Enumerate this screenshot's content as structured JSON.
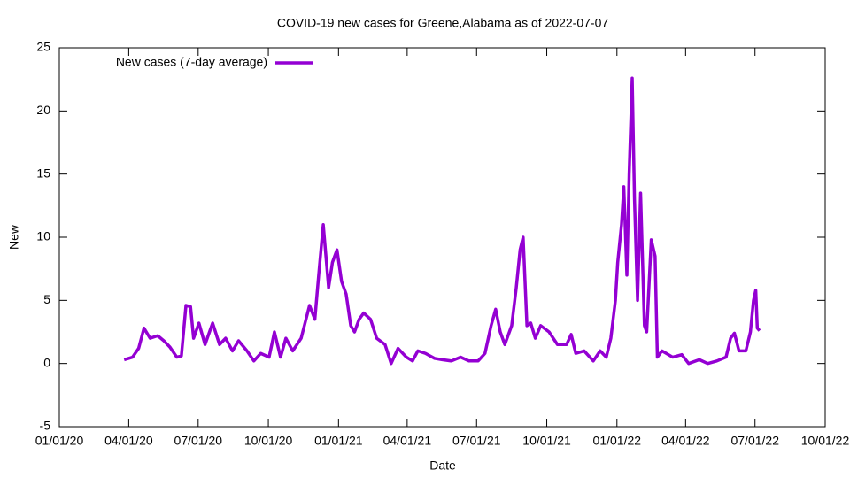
{
  "chart_data": {
    "type": "line",
    "title": "COVID-19 new cases for Greene,Alabama as of 2022-07-07",
    "x_label": "Date",
    "y_label": "New",
    "legend": "top left",
    "grid": false,
    "x": [
      "2020-03-26",
      "2020-04-06",
      "2020-04-14",
      "2020-04-21",
      "2020-04-29",
      "2020-05-09",
      "2020-05-17",
      "2020-05-25",
      "2020-06-03",
      "2020-06-09",
      "2020-06-15",
      "2020-06-21",
      "2020-06-25",
      "2020-07-02",
      "2020-07-10",
      "2020-07-20",
      "2020-07-29",
      "2020-08-06",
      "2020-08-15",
      "2020-08-23",
      "2020-09-03",
      "2020-09-12",
      "2020-09-21",
      "2020-10-02",
      "2020-10-09",
      "2020-10-17",
      "2020-10-24",
      "2020-11-02",
      "2020-11-13",
      "2020-11-24",
      "2020-12-01",
      "2020-12-06",
      "2020-12-12",
      "2020-12-19",
      "2020-12-24",
      "2020-12-30",
      "2021-01-05",
      "2021-01-11",
      "2021-01-17",
      "2021-01-22",
      "2021-01-28",
      "2021-02-03",
      "2021-02-12",
      "2021-02-20",
      "2021-03-03",
      "2021-03-11",
      "2021-03-20",
      "2021-03-31",
      "2021-04-08",
      "2021-04-15",
      "2021-04-25",
      "2021-05-07",
      "2021-05-17",
      "2021-05-29",
      "2021-06-10",
      "2021-06-21",
      "2021-07-03",
      "2021-07-12",
      "2021-07-20",
      "2021-07-26",
      "2021-08-01",
      "2021-08-07",
      "2021-08-16",
      "2021-08-22",
      "2021-08-27",
      "2021-08-31",
      "2021-09-05",
      "2021-09-10",
      "2021-09-16",
      "2021-09-23",
      "2021-10-04",
      "2021-10-15",
      "2021-10-27",
      "2021-11-02",
      "2021-11-08",
      "2021-11-19",
      "2021-12-01",
      "2021-12-10",
      "2021-12-18",
      "2021-12-24",
      "2021-12-30",
      "2022-01-02",
      "2022-01-07",
      "2022-01-10",
      "2022-01-14",
      "2022-01-17",
      "2022-01-21",
      "2022-01-24",
      "2022-01-28",
      "2022-02-01",
      "2022-02-06",
      "2022-02-09",
      "2022-02-15",
      "2022-02-20",
      "2022-02-23",
      "2022-03-01",
      "2022-03-15",
      "2022-03-27",
      "2022-04-05",
      "2022-04-19",
      "2022-04-30",
      "2022-05-12",
      "2022-05-24",
      "2022-05-30",
      "2022-06-04",
      "2022-06-10",
      "2022-06-19",
      "2022-06-25",
      "2022-06-29",
      "2022-07-02",
      "2022-07-04",
      "2022-07-07"
    ],
    "series": [
      {
        "name": "New cases (7-day average)",
        "color": "#9400d3",
        "values": [
          0.3,
          0.5,
          1.2,
          2.8,
          2.0,
          2.2,
          1.8,
          1.3,
          0.5,
          0.6,
          4.6,
          4.5,
          2.0,
          3.2,
          1.5,
          3.2,
          1.5,
          2.0,
          1.0,
          1.8,
          1.0,
          0.2,
          0.8,
          0.5,
          2.5,
          0.5,
          2.0,
          1.0,
          2.0,
          4.6,
          3.5,
          7.0,
          11.0,
          6.0,
          8.0,
          9.0,
          6.5,
          5.5,
          3.0,
          2.5,
          3.5,
          4.0,
          3.5,
          2.0,
          1.5,
          0.0,
          1.2,
          0.5,
          0.2,
          1.0,
          0.8,
          0.4,
          0.3,
          0.2,
          0.5,
          0.2,
          0.2,
          0.8,
          3.0,
          4.3,
          2.5,
          1.5,
          3.0,
          6.0,
          9.0,
          10.0,
          3.0,
          3.2,
          2.0,
          3.0,
          2.5,
          1.5,
          1.5,
          2.3,
          0.8,
          1.0,
          0.2,
          1.0,
          0.5,
          2.0,
          5.0,
          8.0,
          11.0,
          14.0,
          7.0,
          15.0,
          22.6,
          13.0,
          5.0,
          13.5,
          3.0,
          2.5,
          9.8,
          8.5,
          0.5,
          1.0,
          0.5,
          0.7,
          0.0,
          0.3,
          0.0,
          0.2,
          0.5,
          2.0,
          2.4,
          1.0,
          1.0,
          2.5,
          5.0,
          5.8,
          2.8,
          2.6
        ]
      }
    ],
    "xlim": [
      "2020-01-01",
      "2022-10-01"
    ],
    "xticks": [
      {
        "value": "2020-01-01",
        "label": "01/01/20"
      },
      {
        "value": "2020-04-01",
        "label": "04/01/20"
      },
      {
        "value": "2020-07-01",
        "label": "07/01/20"
      },
      {
        "value": "2020-10-01",
        "label": "10/01/20"
      },
      {
        "value": "2021-01-01",
        "label": "01/01/21"
      },
      {
        "value": "2021-04-01",
        "label": "04/01/21"
      },
      {
        "value": "2021-07-01",
        "label": "07/01/21"
      },
      {
        "value": "2021-10-01",
        "label": "10/01/21"
      },
      {
        "value": "2022-01-01",
        "label": "01/01/22"
      },
      {
        "value": "2022-04-01",
        "label": "04/01/22"
      },
      {
        "value": "2022-07-01",
        "label": "07/01/22"
      },
      {
        "value": "2022-10-01",
        "label": "10/01/22"
      }
    ],
    "ylim": [
      -5,
      25
    ],
    "yticks": [
      -5,
      0,
      5,
      10,
      15,
      20,
      25
    ]
  }
}
